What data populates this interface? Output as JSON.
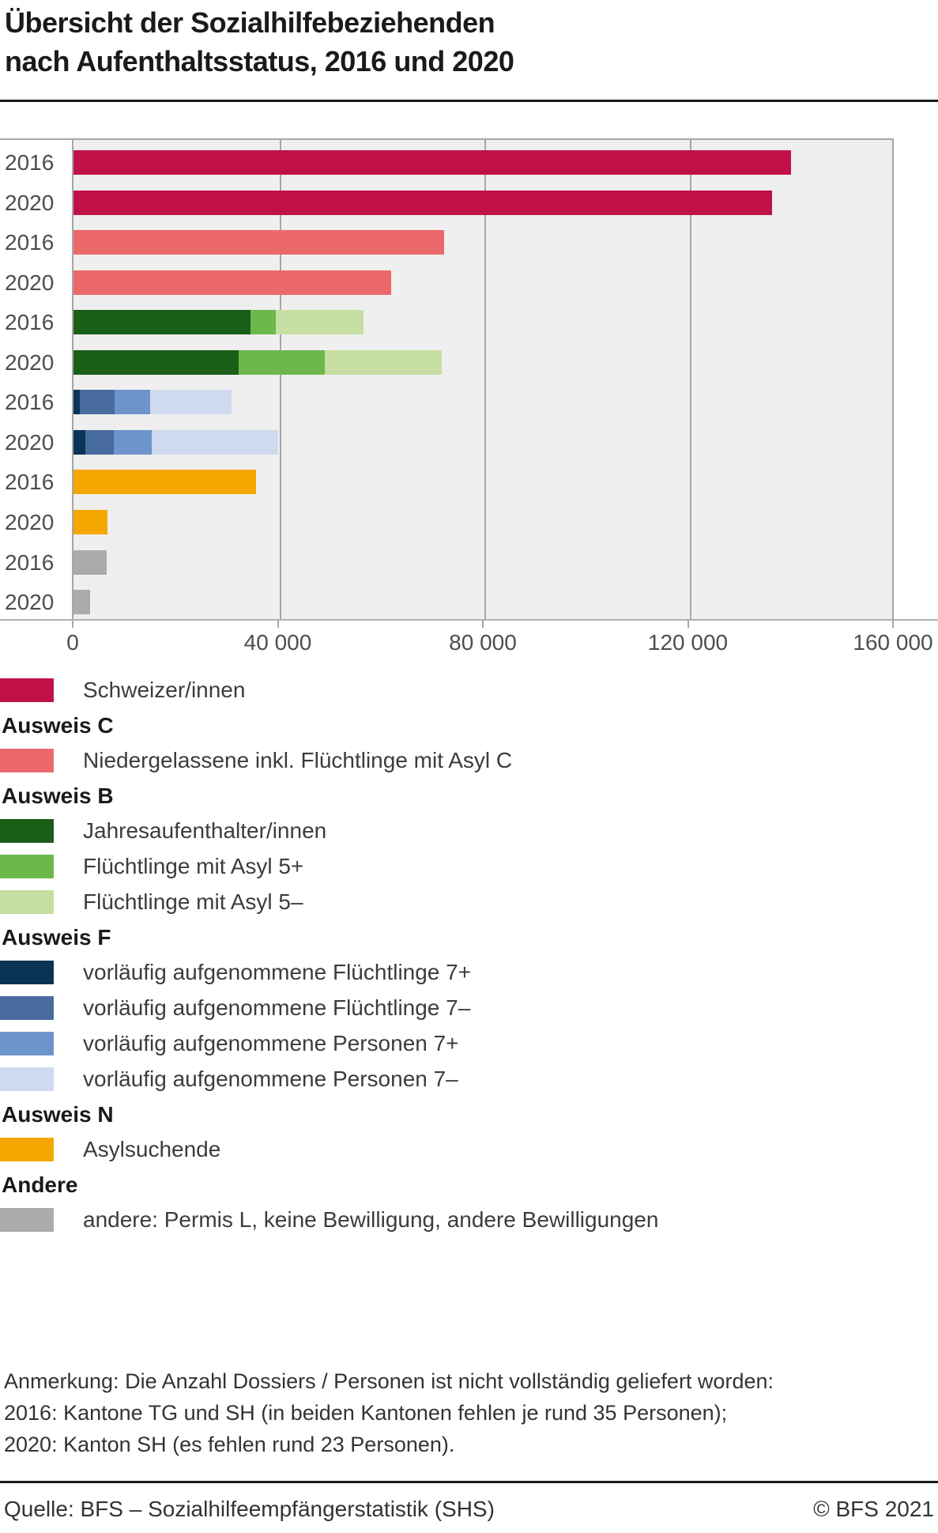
{
  "title": {
    "line1": "Übersicht der Sozialhilfebeziehenden",
    "line2": "nach Aufenthaltsstatus, 2016 und 2020"
  },
  "chart_data": {
    "type": "bar",
    "orientation": "horizontal",
    "grid": true,
    "xlabel": "",
    "ylabel": "",
    "x_axis": {
      "min": 0,
      "max": 160000,
      "tick_values": [
        0,
        40000,
        80000,
        120000,
        160000
      ],
      "tick_labels": [
        "0",
        "40 000",
        "80 000",
        "120 000",
        "160 000"
      ]
    },
    "rows": [
      {
        "year": "2016",
        "group": "Schweizer/innen",
        "segments": [
          {
            "label": "Schweizer/innen",
            "value": 140000,
            "color": "#C01048"
          }
        ]
      },
      {
        "year": "2020",
        "group": "Schweizer/innen",
        "segments": [
          {
            "label": "Schweizer/innen",
            "value": 136300,
            "color": "#C01048"
          }
        ]
      },
      {
        "year": "2016",
        "group": "Ausweis C",
        "segments": [
          {
            "label": "Niedergelassene inkl. Flüchtlinge mit Asyl C",
            "value": 72300,
            "color": "#EC696B"
          }
        ]
      },
      {
        "year": "2020",
        "group": "Ausweis C",
        "segments": [
          {
            "label": "Niedergelassene inkl. Flüchtlinge mit Asyl C",
            "value": 61900,
            "color": "#EC696B"
          }
        ]
      },
      {
        "year": "2016",
        "group": "Ausweis B",
        "segments": [
          {
            "label": "Jahresaufenthalter/innen",
            "value": 34600,
            "color": "#1B5E17"
          },
          {
            "label": "Flüchtlinge mit Asyl 5+",
            "value": 4900,
            "color": "#6CB84D"
          },
          {
            "label": "Flüchtlinge mit Asyl 5–",
            "value": 17100,
            "color": "#C7DFA3"
          }
        ]
      },
      {
        "year": "2020",
        "group": "Ausweis B",
        "segments": [
          {
            "label": "Jahresaufenthalter/innen",
            "value": 32200,
            "color": "#1B5E17"
          },
          {
            "label": "Flüchtlinge mit Asyl 5+",
            "value": 16800,
            "color": "#6CB84D"
          },
          {
            "label": "Flüchtlinge mit Asyl 5–",
            "value": 22800,
            "color": "#C7DFA3"
          }
        ]
      },
      {
        "year": "2016",
        "group": "Ausweis F",
        "segments": [
          {
            "label": "vorläufig aufgenommene Flüchtlinge 7+",
            "value": 1200,
            "color": "#0B3356"
          },
          {
            "label": "vorläufig aufgenommene Flüchtlinge 7–",
            "value": 6800,
            "color": "#486C9E"
          },
          {
            "label": "vorläufig aufgenommene Personen 7+",
            "value": 6900,
            "color": "#6E94CC"
          },
          {
            "label": "vorläufig aufgenommene Personen 7–",
            "value": 15900,
            "color": "#CFDAEF"
          }
        ]
      },
      {
        "year": "2020",
        "group": "Ausweis F",
        "segments": [
          {
            "label": "vorläufig aufgenommene Flüchtlinge 7+",
            "value": 2300,
            "color": "#0B3356"
          },
          {
            "label": "vorläufig aufgenommene Flüchtlinge 7–",
            "value": 5600,
            "color": "#486C9E"
          },
          {
            "label": "vorläufig aufgenommene Personen 7+",
            "value": 7400,
            "color": "#6E94CC"
          },
          {
            "label": "vorläufig aufgenommene Personen 7–",
            "value": 24700,
            "color": "#CFDAEF"
          }
        ]
      },
      {
        "year": "2016",
        "group": "Ausweis N",
        "segments": [
          {
            "label": "Asylsuchende",
            "value": 35600,
            "color": "#F5A700"
          }
        ]
      },
      {
        "year": "2020",
        "group": "Ausweis N",
        "segments": [
          {
            "label": "Asylsuchende",
            "value": 6700,
            "color": "#F5A700"
          }
        ]
      },
      {
        "year": "2016",
        "group": "Andere",
        "segments": [
          {
            "label": "andere: Permis L, keine Bewilligung, andere Bewilligungen",
            "value": 6400,
            "color": "#ABABAB"
          }
        ]
      },
      {
        "year": "2020",
        "group": "Andere",
        "segments": [
          {
            "label": "andere: Permis L, keine Bewilligung, andere Bewilligungen",
            "value": 3200,
            "color": "#ABABAB"
          }
        ]
      }
    ],
    "plot_background": "#EFEFEF",
    "gridline_color": "#A6A6A6"
  },
  "legend": [
    {
      "type": "item",
      "label": "Schweizer/innen",
      "color": "#C01048"
    },
    {
      "type": "heading",
      "label": "Ausweis C"
    },
    {
      "type": "item",
      "label": "Niedergelassene inkl. Flüchtlinge mit Asyl C",
      "color": "#EC696B"
    },
    {
      "type": "heading",
      "label": "Ausweis B"
    },
    {
      "type": "item",
      "label": "Jahresaufenthalter/innen",
      "color": "#1B5E17"
    },
    {
      "type": "item",
      "label": "Flüchtlinge mit Asyl 5+",
      "color": "#6CB84D"
    },
    {
      "type": "item",
      "label": "Flüchtlinge mit Asyl 5–",
      "color": "#C7DFA3"
    },
    {
      "type": "heading",
      "label": "Ausweis F"
    },
    {
      "type": "item",
      "label": "vorläufig aufgenommene Flüchtlinge 7+",
      "color": "#0B3356"
    },
    {
      "type": "item",
      "label": "vorläufig aufgenommene Flüchtlinge 7–",
      "color": "#486C9E"
    },
    {
      "type": "item",
      "label": "vorläufig aufgenommene Personen 7+",
      "color": "#6E94CC"
    },
    {
      "type": "item",
      "label": "vorläufig aufgenommene Personen 7–",
      "color": "#CFDAEF"
    },
    {
      "type": "heading",
      "label": "Ausweis N"
    },
    {
      "type": "item",
      "label": "Asylsuchende",
      "color": "#F5A700"
    },
    {
      "type": "heading",
      "label": "Andere"
    },
    {
      "type": "item",
      "label": "andere: Permis L, keine Bewilligung, andere Bewilligungen",
      "color": "#ABABAB"
    }
  ],
  "note": {
    "line1": "Anmerkung: Die Anzahl Dossiers / Personen ist nicht vollständig geliefert worden:",
    "line2": "2016: Kantone TG und SH (in beiden Kantonen fehlen je rund 35 Personen);",
    "line3": "2020: Kanton SH (es fehlen rund 23 Personen)."
  },
  "footer": {
    "source": "Quelle: BFS – Sozialhilfeempfängerstatistik (SHS)",
    "copyright": "© BFS 2021"
  }
}
